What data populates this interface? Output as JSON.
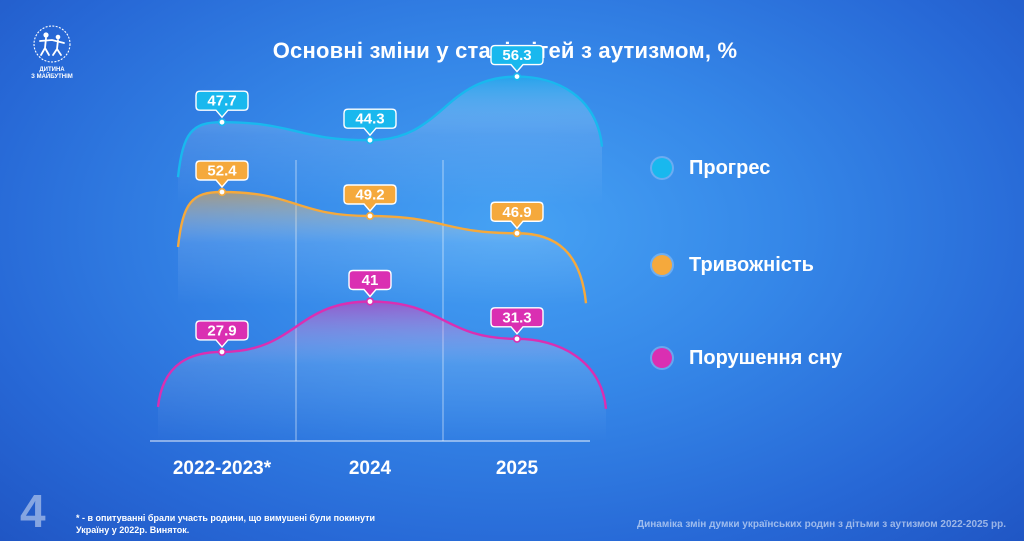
{
  "logo": {
    "name": "Дитина з майбутнім",
    "text": "ДИТИНА\nЗ МАЙБУТНІМ",
    "icon": "children-circle-logo"
  },
  "title": "Основні зміни у стані дітей з аутизмом, %",
  "legend": [
    {
      "label": "Прогрес",
      "color": "#19b8ee"
    },
    {
      "label": "Тривожність",
      "color": "#f5a93c"
    },
    {
      "label": "Порушення сну",
      "color": "#da2fb2"
    }
  ],
  "footnote": "* - в опитуванні брали участь родини, що вимушені були покинути Україну у 2022р. Виняток.",
  "page_number": "4",
  "caption": "Динаміка змін думки українських родин з дітьми з аутизмом 2022-2025 рр.",
  "chart_data": {
    "type": "area",
    "title": "Основні зміни у стані дітей з аутизмом, %",
    "categories": [
      "2022-2023*",
      "2024",
      "2025"
    ],
    "series": [
      {
        "name": "Прогрес",
        "values": [
          47.7,
          44.3,
          56.3
        ],
        "labels": [
          "47.7",
          "44.3",
          "56.3"
        ],
        "color": "#19b8ee"
      },
      {
        "name": "Тривожність",
        "values": [
          52.4,
          49.2,
          46.9
        ],
        "labels": [
          "52.4",
          "49.2",
          "46.9"
        ],
        "color": "#f5a93c"
      },
      {
        "name": "Порушення сну",
        "values": [
          27.9,
          41,
          31.3
        ],
        "labels": [
          "27.9",
          "41",
          "31.3"
        ],
        "color": "#da2fb2"
      }
    ],
    "grid": false,
    "legend_position": "right"
  }
}
